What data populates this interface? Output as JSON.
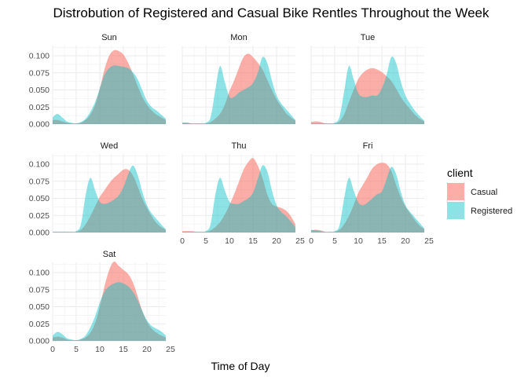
{
  "chart_data": {
    "type": "area",
    "subtype": "density",
    "title": "Distrobution of Registered and Casual Bike Rentles Throughout the Week",
    "xlabel": "Time of Day",
    "ylabel": "",
    "xlim": [
      0,
      24
    ],
    "ylim": [
      0,
      0.115
    ],
    "x_ticks": [
      0,
      5,
      10,
      15,
      20,
      25
    ],
    "y_ticks": [
      0.0,
      0.025,
      0.05,
      0.075,
      0.1
    ],
    "y_tick_labels": [
      "0.000",
      "0.025",
      "0.050",
      "0.075",
      "0.100"
    ],
    "grid": true,
    "legend": {
      "title": "client",
      "position": "right",
      "entries": [
        {
          "name": "Casual",
          "color": "#F8766D"
        },
        {
          "name": "Registered",
          "color": "#00BFC4"
        }
      ]
    },
    "x": [
      0,
      1,
      2,
      3,
      4,
      5,
      6,
      7,
      8,
      9,
      10,
      11,
      12,
      13,
      14,
      15,
      16,
      17,
      18,
      19,
      20,
      21,
      22,
      23,
      24
    ],
    "facets": [
      {
        "label": "Sun",
        "series": [
          {
            "name": "Casual",
            "values": [
              0.006,
              0.006,
              0.004,
              0.002,
              0.001,
              0.001,
              0.002,
              0.006,
              0.014,
              0.028,
              0.052,
              0.08,
              0.1,
              0.108,
              0.107,
              0.102,
              0.09,
              0.074,
              0.056,
              0.04,
              0.028,
              0.02,
              0.014,
              0.01,
              0.006
            ]
          },
          {
            "name": "Registered",
            "values": [
              0.01,
              0.015,
              0.01,
              0.004,
              0.002,
              0.001,
              0.003,
              0.008,
              0.018,
              0.032,
              0.052,
              0.072,
              0.082,
              0.086,
              0.085,
              0.084,
              0.082,
              0.076,
              0.066,
              0.05,
              0.034,
              0.025,
              0.02,
              0.014,
              0.008
            ]
          }
        ]
      },
      {
        "label": "Mon",
        "series": [
          {
            "name": "Casual",
            "values": [
              0.002,
              0.002,
              0.001,
              0.001,
              0.001,
              0.001,
              0.003,
              0.008,
              0.015,
              0.028,
              0.048,
              0.064,
              0.082,
              0.098,
              0.103,
              0.098,
              0.09,
              0.08,
              0.065,
              0.05,
              0.036,
              0.026,
              0.016,
              0.01,
              0.005
            ]
          },
          {
            "name": "Registered",
            "values": [
              0.002,
              0.002,
              0.001,
              0.001,
              0.001,
              0.002,
              0.01,
              0.05,
              0.085,
              0.062,
              0.04,
              0.04,
              0.046,
              0.05,
              0.054,
              0.06,
              0.075,
              0.098,
              0.09,
              0.064,
              0.042,
              0.03,
              0.022,
              0.014,
              0.006
            ]
          }
        ]
      },
      {
        "label": "Tue",
        "series": [
          {
            "name": "Casual",
            "values": [
              0.003,
              0.004,
              0.003,
              0.001,
              0.001,
              0.001,
              0.004,
              0.014,
              0.032,
              0.05,
              0.066,
              0.075,
              0.08,
              0.082,
              0.08,
              0.076,
              0.07,
              0.063,
              0.052,
              0.04,
              0.03,
              0.022,
              0.014,
              0.008,
              0.004
            ]
          },
          {
            "name": "Registered",
            "values": [
              0.001,
              0.001,
              0.001,
              0.001,
              0.001,
              0.002,
              0.01,
              0.048,
              0.085,
              0.066,
              0.045,
              0.04,
              0.04,
              0.042,
              0.042,
              0.052,
              0.072,
              0.098,
              0.09,
              0.063,
              0.042,
              0.03,
              0.02,
              0.012,
              0.005
            ]
          }
        ]
      },
      {
        "label": "Wed",
        "series": [
          {
            "name": "Casual",
            "values": [
              0.001,
              0.001,
              0.001,
              0.001,
              0.001,
              0.001,
              0.004,
              0.012,
              0.024,
              0.038,
              0.052,
              0.062,
              0.072,
              0.08,
              0.086,
              0.092,
              0.092,
              0.084,
              0.068,
              0.05,
              0.036,
              0.024,
              0.014,
              0.008,
              0.004
            ]
          },
          {
            "name": "Registered",
            "values": [
              0.001,
              0.001,
              0.001,
              0.001,
              0.001,
              0.002,
              0.012,
              0.055,
              0.08,
              0.062,
              0.045,
              0.042,
              0.044,
              0.048,
              0.054,
              0.066,
              0.085,
              0.098,
              0.085,
              0.06,
              0.04,
              0.028,
              0.02,
              0.012,
              0.005
            ]
          }
        ]
      },
      {
        "label": "Thu",
        "series": [
          {
            "name": "Casual",
            "values": [
              0.002,
              0.002,
              0.002,
              0.001,
              0.001,
              0.001,
              0.003,
              0.008,
              0.015,
              0.026,
              0.04,
              0.056,
              0.074,
              0.092,
              0.103,
              0.109,
              0.098,
              0.08,
              0.056,
              0.042,
              0.038,
              0.036,
              0.032,
              0.024,
              0.012
            ]
          },
          {
            "name": "Registered",
            "values": [
              0.001,
              0.001,
              0.001,
              0.001,
              0.001,
              0.002,
              0.012,
              0.055,
              0.08,
              0.062,
              0.045,
              0.042,
              0.042,
              0.046,
              0.05,
              0.058,
              0.078,
              0.098,
              0.09,
              0.062,
              0.04,
              0.03,
              0.024,
              0.016,
              0.008
            ]
          }
        ]
      },
      {
        "label": "Fri",
        "series": [
          {
            "name": "Casual",
            "values": [
              0.003,
              0.004,
              0.003,
              0.001,
              0.001,
              0.001,
              0.004,
              0.012,
              0.024,
              0.04,
              0.058,
              0.07,
              0.082,
              0.094,
              0.1,
              0.102,
              0.1,
              0.09,
              0.07,
              0.052,
              0.038,
              0.028,
              0.018,
              0.01,
              0.005
            ]
          },
          {
            "name": "Registered",
            "values": [
              0.004,
              0.003,
              0.002,
              0.001,
              0.001,
              0.002,
              0.01,
              0.05,
              0.08,
              0.062,
              0.044,
              0.04,
              0.044,
              0.05,
              0.056,
              0.06,
              0.078,
              0.096,
              0.086,
              0.06,
              0.04,
              0.03,
              0.022,
              0.014,
              0.006
            ]
          }
        ]
      },
      {
        "label": "Sat",
        "series": [
          {
            "name": "Casual",
            "values": [
              0.005,
              0.006,
              0.005,
              0.002,
              0.001,
              0.001,
              0.002,
              0.005,
              0.012,
              0.026,
              0.05,
              0.08,
              0.104,
              0.116,
              0.11,
              0.104,
              0.098,
              0.086,
              0.066,
              0.044,
              0.028,
              0.018,
              0.012,
              0.008,
              0.005
            ]
          },
          {
            "name": "Registered",
            "values": [
              0.008,
              0.013,
              0.01,
              0.004,
              0.002,
              0.001,
              0.003,
              0.008,
              0.02,
              0.036,
              0.056,
              0.072,
              0.08,
              0.084,
              0.086,
              0.084,
              0.08,
              0.072,
              0.06,
              0.044,
              0.03,
              0.022,
              0.018,
              0.014,
              0.008
            ]
          }
        ]
      }
    ]
  }
}
